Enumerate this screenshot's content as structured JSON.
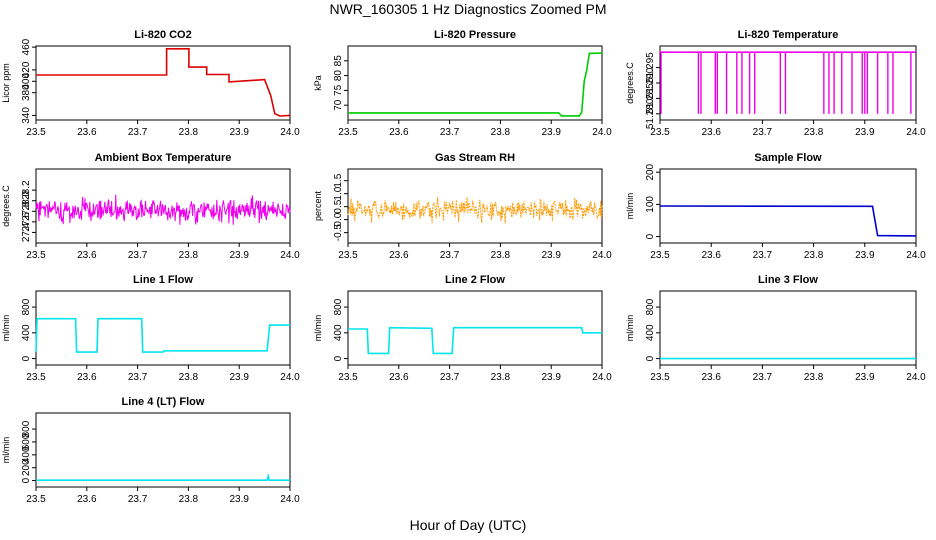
{
  "title": "NWR_160305  1 Hz Diagnostics Zoomed PM",
  "xlabel": "Hour of Day (UTC)",
  "chart_data": [
    {
      "type": "line",
      "title": "Li-820 CO2",
      "ylabel": "Licor ppm",
      "xlim": [
        23.5,
        24.0
      ],
      "ylim": [
        332,
        462
      ],
      "xticks": [
        "23.5",
        "23.6",
        "23.7",
        "23.8",
        "23.9",
        "24.0"
      ],
      "yticks": [
        "340",
        "380",
        "400",
        "420",
        "460"
      ],
      "color": "#dd0000",
      "series": [
        {
          "x": [
            23.5,
            23.757,
            23.757,
            23.801,
            23.801,
            23.836,
            23.836,
            23.88,
            23.88,
            23.95,
            23.962,
            23.97,
            23.98,
            24.0
          ],
          "y": [
            411,
            411,
            457,
            457,
            425,
            425,
            412,
            412,
            399,
            403,
            375,
            343,
            339,
            340
          ]
        }
      ]
    },
    {
      "type": "line",
      "title": "Li-820 Pressure",
      "ylabel": "kPa",
      "xlim": [
        23.5,
        24.0
      ],
      "ylim": [
        65,
        90
      ],
      "xticks": [
        "23.5",
        "23.6",
        "23.7",
        "23.8",
        "23.9",
        "24.0"
      ],
      "yticks": [
        "70",
        "75",
        "80",
        "85"
      ],
      "color": "#00cc00",
      "series": [
        {
          "x": [
            23.5,
            23.915,
            23.92,
            23.955,
            23.96,
            23.965,
            23.97,
            23.975,
            24.0
          ],
          "y": [
            67.4,
            67.4,
            66.4,
            66.4,
            67.5,
            78,
            82,
            87.5,
            87.6
          ]
        }
      ]
    },
    {
      "type": "line",
      "title": "Li-820 Temperature",
      "ylabel": "degrees.C",
      "xlim": [
        23.5,
        24.0
      ],
      "ylim": [
        51.278,
        51.302
      ],
      "xticks": [
        "23.5",
        "23.6",
        "23.7",
        "23.8",
        "23.9",
        "24.0"
      ],
      "yticks": [
        "51.280",
        "51.285",
        "51.290",
        "51.295"
      ],
      "color": "#ee00ee",
      "series": [
        {
          "x": [
            23.5,
            24.0
          ],
          "y": [
            51.3,
            51.3
          ]
        }
      ],
      "dips": [
        23.502,
        23.575,
        23.58,
        23.608,
        23.612,
        23.63,
        23.65,
        23.66,
        23.675,
        23.685,
        23.735,
        23.745,
        23.82,
        23.83,
        23.84,
        23.855,
        23.875,
        23.895,
        23.9,
        23.905,
        23.925,
        23.945,
        23.955,
        23.99
      ],
      "dip_value": 51.28
    },
    {
      "type": "line",
      "title": "Ambient Box Temperature",
      "ylabel": "degrees.C",
      "xlim": [
        23.5,
        24.0
      ],
      "ylim": [
        27.2,
        28.6
      ],
      "xticks": [
        "23.5",
        "23.6",
        "23.7",
        "23.8",
        "23.9",
        "24.0"
      ],
      "yticks": [
        "27.4",
        "27.6",
        "27.8",
        "28.0",
        "28.2"
      ],
      "color": "#ee00ee",
      "noise": {
        "center": 27.82,
        "amp": 0.32,
        "n": 420
      }
    },
    {
      "type": "line",
      "title": "Gas Stream RH",
      "ylabel": "percent",
      "xlim": [
        23.5,
        24.0
      ],
      "ylim": [
        -0.9,
        1.95
      ],
      "xticks": [
        "23.5",
        "23.6",
        "23.7",
        "23.8",
        "23.9",
        "24.0"
      ],
      "yticks": [
        "-0.5",
        "0.0",
        "0.5",
        "1.0",
        "1.5"
      ],
      "color": "#ff9900",
      "noise": {
        "center": 0.38,
        "amp": 0.6,
        "n": 420
      }
    },
    {
      "type": "line",
      "title": "Sample Flow",
      "ylabel": "ml/min",
      "xlim": [
        23.5,
        24.0
      ],
      "ylim": [
        -20,
        210
      ],
      "xticks": [
        "23.5",
        "23.6",
        "23.7",
        "23.8",
        "23.9",
        "24.0"
      ],
      "yticks": [
        "0",
        "100",
        "200"
      ],
      "color": "#0000cc",
      "series": [
        {
          "x": [
            23.5,
            23.91,
            23.915,
            23.925,
            24.0
          ],
          "y": [
            95,
            94,
            94,
            3,
            2
          ]
        }
      ]
    },
    {
      "type": "line",
      "title": "Line 1 Flow",
      "ylabel": "ml/min",
      "xlim": [
        23.5,
        24.0
      ],
      "ylim": [
        -100,
        1050
      ],
      "xticks": [
        "23.5",
        "23.6",
        "23.7",
        "23.8",
        "23.9",
        "24.0"
      ],
      "yticks": [
        "0",
        "400",
        "800"
      ],
      "color": "#00e5ee",
      "series": [
        {
          "x": [
            23.5,
            23.502,
            23.578,
            23.58,
            23.62,
            23.622,
            23.708,
            23.71,
            23.75,
            23.752,
            23.955,
            23.96,
            24.0
          ],
          "y": [
            100,
            620,
            620,
            100,
            100,
            620,
            620,
            100,
            100,
            120,
            120,
            520,
            520
          ]
        }
      ]
    },
    {
      "type": "line",
      "title": "Line 2 Flow",
      "ylabel": "ml/min",
      "xlim": [
        23.5,
        24.0
      ],
      "ylim": [
        -100,
        1050
      ],
      "xticks": [
        "23.5",
        "23.6",
        "23.7",
        "23.8",
        "23.9",
        "24.0"
      ],
      "yticks": [
        "0",
        "400",
        "800"
      ],
      "color": "#00e5ee",
      "series": [
        {
          "x": [
            23.5,
            23.538,
            23.54,
            23.58,
            23.582,
            23.665,
            23.668,
            23.705,
            23.708,
            23.96,
            23.962,
            24.0
          ],
          "y": [
            460,
            460,
            80,
            80,
            480,
            470,
            80,
            80,
            480,
            480,
            400,
            400
          ]
        }
      ]
    },
    {
      "type": "line",
      "title": "Line 3 Flow",
      "ylabel": "ml/min",
      "xlim": [
        23.5,
        24.0
      ],
      "ylim": [
        -100,
        1050
      ],
      "xticks": [
        "23.5",
        "23.6",
        "23.7",
        "23.8",
        "23.9",
        "24.0"
      ],
      "yticks": [
        "0",
        "400",
        "800"
      ],
      "color": "#00e5ee",
      "series": [
        {
          "x": [
            23.5,
            24.0
          ],
          "y": [
            0,
            0
          ]
        }
      ]
    },
    {
      "type": "line",
      "title": "Line 4 (LT) Flow",
      "ylabel": "ml/min",
      "xlim": [
        23.5,
        24.0
      ],
      "ylim": [
        -100,
        1050
      ],
      "xticks": [
        "23.5",
        "23.6",
        "23.7",
        "23.8",
        "23.9",
        "24.0"
      ],
      "yticks": [
        "0",
        "200",
        "400",
        "600",
        "800"
      ],
      "color": "#00e5ee",
      "series": [
        {
          "x": [
            23.5,
            23.955,
            23.957,
            23.959,
            23.961,
            24.0
          ],
          "y": [
            5,
            5,
            70,
            8,
            5,
            5
          ]
        }
      ]
    }
  ]
}
